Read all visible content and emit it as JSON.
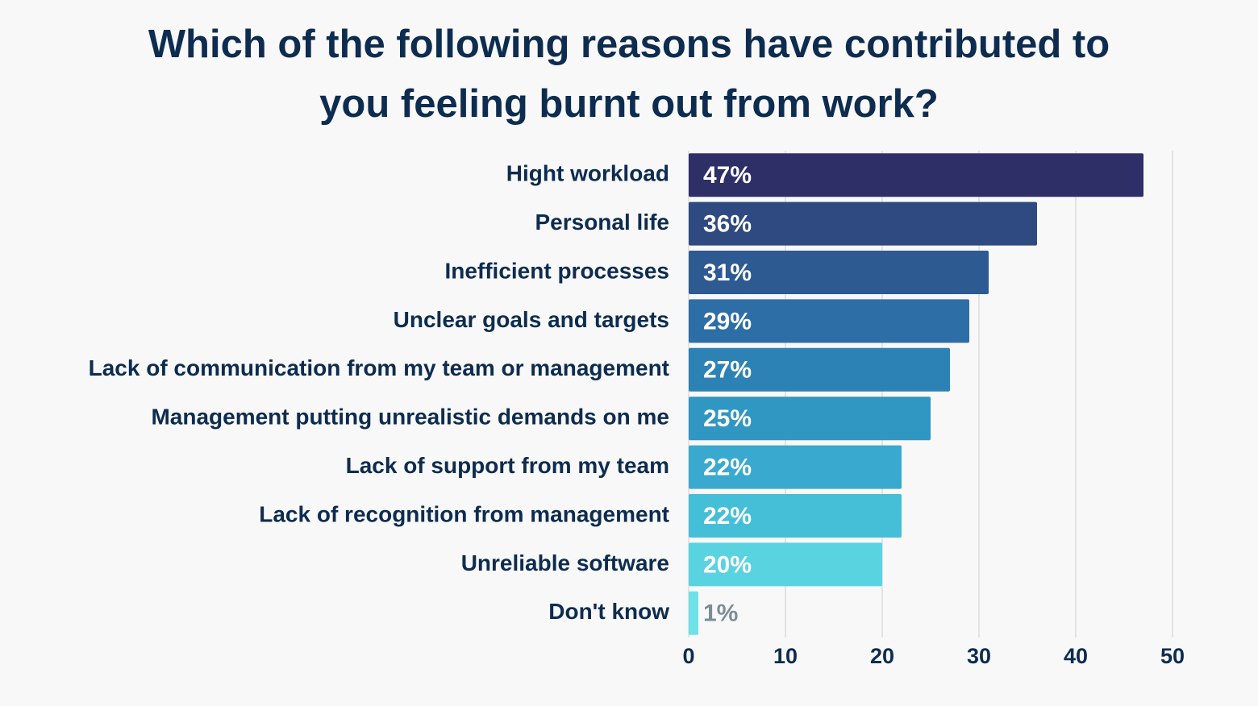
{
  "chart_data": {
    "type": "bar",
    "orientation": "horizontal",
    "title": "Which of the following reasons have contributed to you feeling burnt out from work?",
    "categories": [
      "Hight workload",
      "Personal life",
      "Inefficient processes",
      "Unclear goals and targets",
      "Lack of communication from my team or management",
      "Management putting unrealistic demands on me",
      "Lack of support from my team",
      "Lack of recognition from management",
      "Unreliable software",
      "Don't know"
    ],
    "values": [
      47,
      36,
      31,
      29,
      27,
      25,
      22,
      22,
      20,
      1
    ],
    "value_labels": [
      "47%",
      "36%",
      "31%",
      "29%",
      "27%",
      "25%",
      "22%",
      "22%",
      "20%",
      "1%"
    ],
    "colors": [
      "#2e2f66",
      "#2f4a80",
      "#2e5a92",
      "#2e6ea6",
      "#2d82b5",
      "#3096c2",
      "#3aa9cf",
      "#45bfd8",
      "#5ad3e0",
      "#6fe1e8"
    ],
    "xlim": [
      0,
      50
    ],
    "xticks": [
      0,
      10,
      20,
      30,
      40,
      50
    ],
    "grid": true
  }
}
